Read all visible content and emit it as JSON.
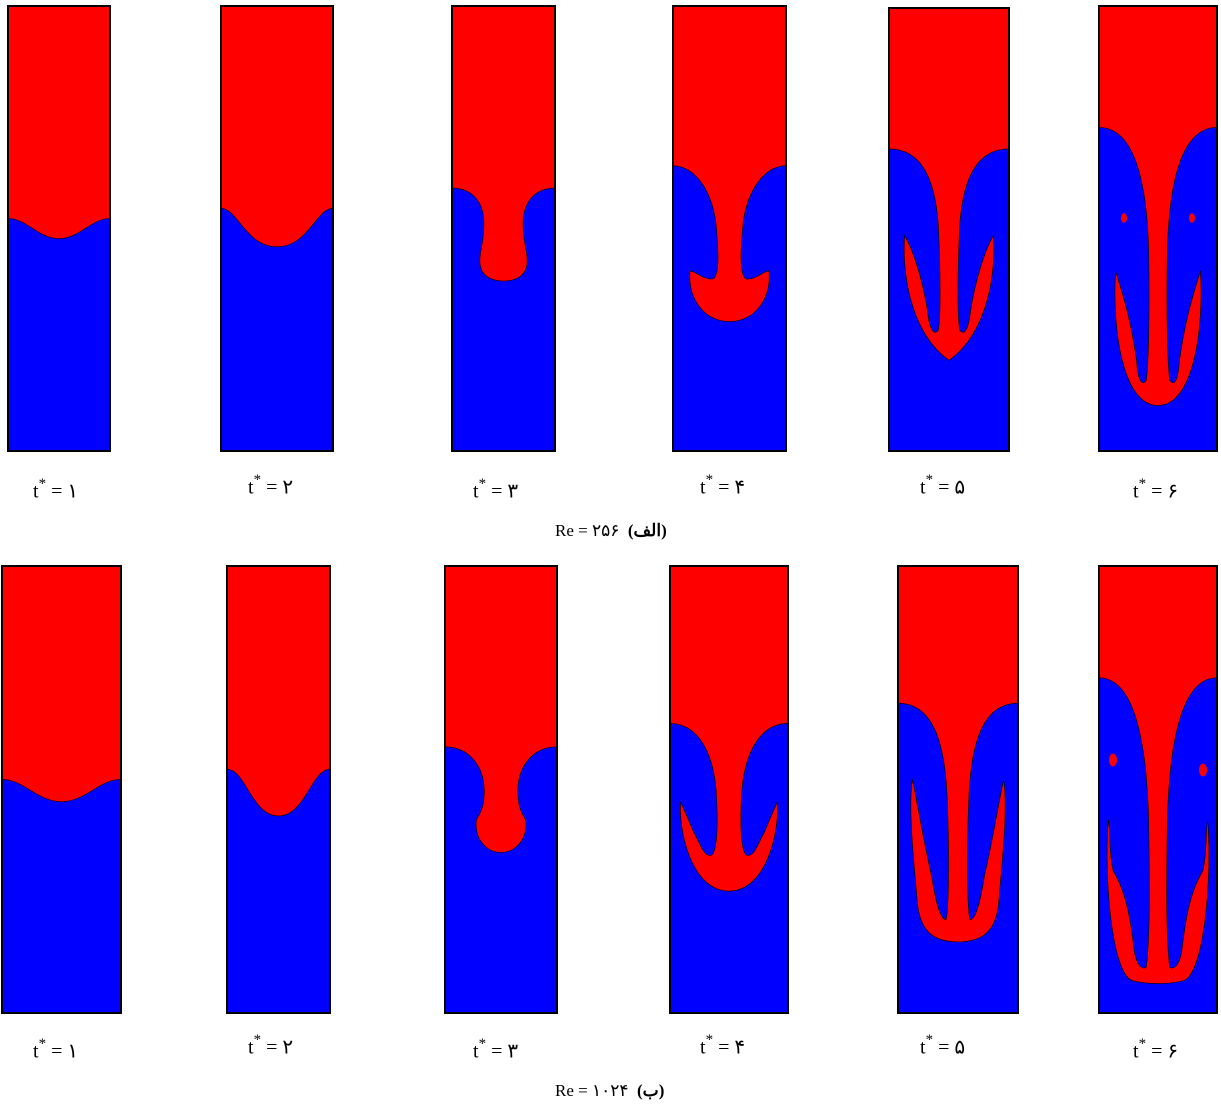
{
  "colors": {
    "heavy_fluid": "#ff0000",
    "light_fluid": "#0000ff",
    "frame": "#000000"
  },
  "rows": [
    {
      "id": "a",
      "caption_value": "Re = ۲۵۶",
      "caption_tag": "(الف)",
      "frames": [
        {
          "t_label": "t",
          "t_sup": "*",
          "t_value": "= ۱"
        },
        {
          "t_label": "t",
          "t_sup": "*",
          "t_value": "= ۲"
        },
        {
          "t_label": "t",
          "t_sup": "*",
          "t_value": "= ۳"
        },
        {
          "t_label": "t",
          "t_sup": "*",
          "t_value": "= ۴"
        },
        {
          "t_label": "t",
          "t_sup": "*",
          "t_value": "= ۵"
        },
        {
          "t_label": "t",
          "t_sup": "*",
          "t_value": "= ۶"
        }
      ]
    },
    {
      "id": "b",
      "caption_value": "Re = ۱۰۲۴",
      "caption_tag": "(ب)",
      "frames": [
        {
          "t_label": "t",
          "t_sup": "*",
          "t_value": "= ۱"
        },
        {
          "t_label": "t",
          "t_sup": "*",
          "t_value": "= ۲"
        },
        {
          "t_label": "t",
          "t_sup": "*",
          "t_value": "= ۳"
        },
        {
          "t_label": "t",
          "t_sup": "*",
          "t_value": "= ۴"
        },
        {
          "t_label": "t",
          "t_sup": "*",
          "t_value": "= ۵"
        },
        {
          "t_label": "t",
          "t_sup": "*",
          "t_value": "= ۶"
        }
      ]
    }
  ]
}
